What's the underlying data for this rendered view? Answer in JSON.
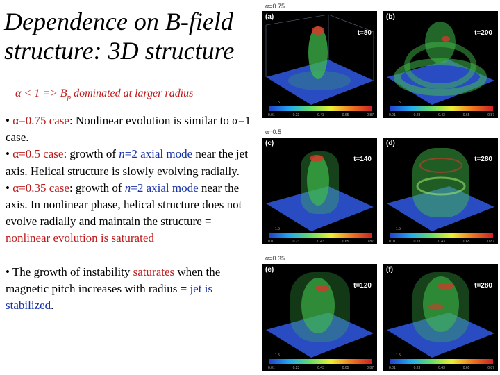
{
  "title": [
    "Dependence on B-field",
    "structure: 3D structure"
  ],
  "subtitle": {
    "alpha": "α",
    "rest": " < 1 => B",
    "sub": "p",
    "tail": " dominated at larger radius"
  },
  "bullets": {
    "b1": {
      "marker": "• ",
      "red": "α=0.75 case",
      "text": ": Nonlinear evolution is similar to α=1 case."
    },
    "b2": {
      "marker": "•  ",
      "red": "α=0.5 case",
      "text1": ": growth of ",
      "n": "n",
      "eq": "=2 ",
      "blue": "axial mode",
      "text2": " near the jet axis. Helical structure is slowly evolving radially."
    },
    "b3": {
      "marker": "•  ",
      "red": "α=0.35 case",
      "text1": ":  growth of ",
      "n": "n",
      "eq": "=2 ",
      "blue": "axial mode",
      "text2": " near the axis. In nonlinear phase, helical structure does not evolve radially and maintain the structure = ",
      "red2": "nonlinear evolution is saturated"
    },
    "b4": {
      "marker": "• ",
      "text1": "The growth of instability ",
      "red": "saturates",
      "text2": " when the magnetic pitch increases with radius = ",
      "blue": "jet is stabilized",
      "text3": "."
    }
  },
  "figure": {
    "alpha_labels": [
      "α=0.75",
      "α=0.5",
      "α=0.35"
    ],
    "panels": [
      {
        "label": "(a)",
        "time": "t=80"
      },
      {
        "label": "(b)",
        "time": "t=200"
      },
      {
        "label": "(c)",
        "time": "t=140"
      },
      {
        "label": "(d)",
        "time": "t=280"
      },
      {
        "label": "(e)",
        "time": "t=120"
      },
      {
        "label": "(f)",
        "time": "t=280"
      }
    ],
    "colorbar_ticks": [
      "0.01",
      "0.23",
      "0.43",
      "0.65",
      "0.87"
    ],
    "colorbar_mid": "1.5",
    "colors": {
      "plane": "#2f54d8",
      "jet": "#3fb94a",
      "hot": "#d23a2a",
      "frame": "#8fa4c8"
    }
  }
}
